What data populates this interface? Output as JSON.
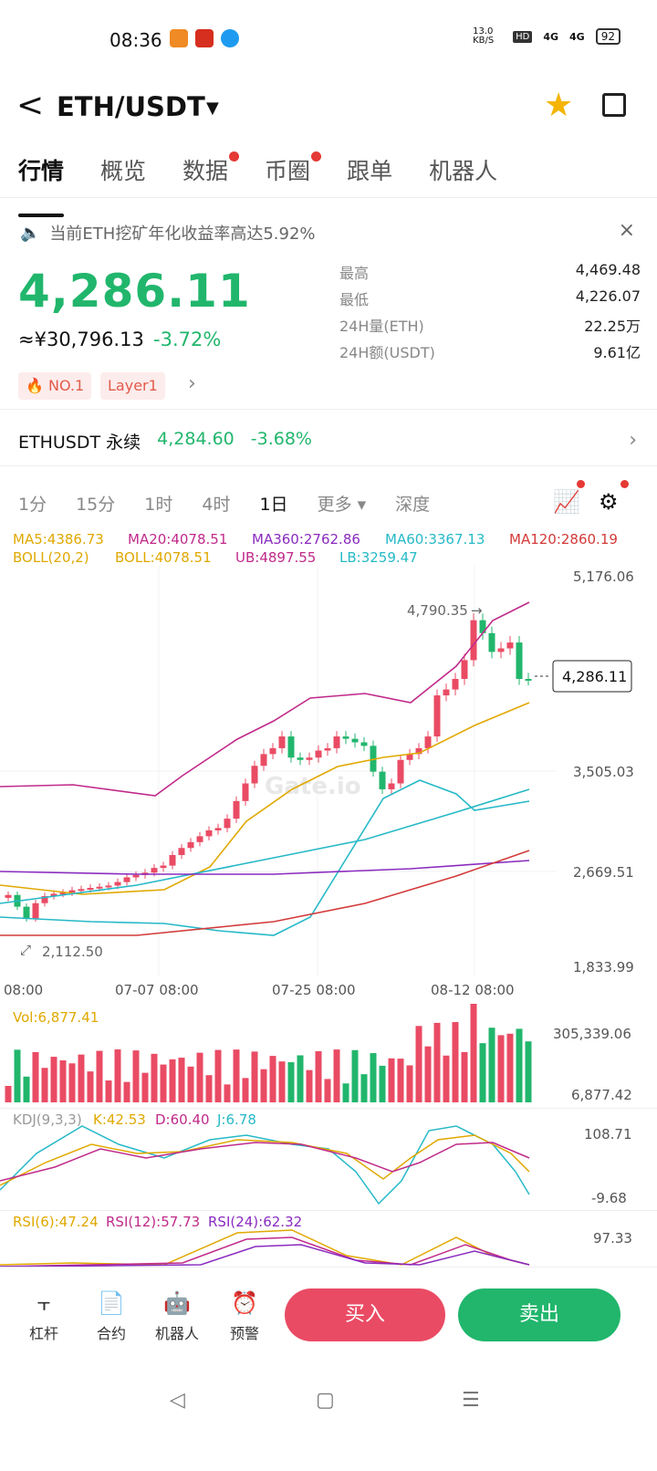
{
  "status_bar": {
    "time": "08:36",
    "net_speed": "13.0 KB/S",
    "signal1": "4G",
    "signal2": "4G",
    "battery": "92"
  },
  "header": {
    "pair": "ETH/USDT",
    "dropdown": "▼",
    "back": "<"
  },
  "tabs": [
    {
      "label": "行情",
      "active": true,
      "dot": false
    },
    {
      "label": "概览",
      "active": false,
      "dot": false
    },
    {
      "label": "数据",
      "active": false,
      "dot": true
    },
    {
      "label": "币圈",
      "active": false,
      "dot": true
    },
    {
      "label": "跟单",
      "active": false,
      "dot": false
    },
    {
      "label": "机器人",
      "active": false,
      "dot": false
    }
  ],
  "notice": {
    "text": "当前ETH挖矿年化收益率高达5.92%",
    "close": "×"
  },
  "price": {
    "last": "4,286.11",
    "cny": "≈¥30,796.13",
    "change": "-3.72%"
  },
  "tags": [
    "NO.1",
    "Layer1"
  ],
  "stats": [
    {
      "k": "最高",
      "v": "4,469.48"
    },
    {
      "k": "最低",
      "v": "4,226.07"
    },
    {
      "k": "24H量(ETH)",
      "v": "22.25万"
    },
    {
      "k": "24H额(USDT)",
      "v": "9.61亿"
    }
  ],
  "perp": {
    "name": "ETHUSDT 永续",
    "price": "4,284.60",
    "change": "-3.68%"
  },
  "timeframes": [
    {
      "label": "1分",
      "active": false
    },
    {
      "label": "15分",
      "active": false
    },
    {
      "label": "1时",
      "active": false
    },
    {
      "label": "4时",
      "active": false
    },
    {
      "label": "1日",
      "active": true
    },
    {
      "label": "更多 ▾",
      "active": false
    },
    {
      "label": "深度",
      "active": false
    }
  ],
  "indicators": {
    "ma5": "MA5:4386.73",
    "ma20": "MA20:4078.51",
    "ma360": "MA360:2762.86",
    "ma60": "MA60:3367.13",
    "ma120": "MA120:2860.19",
    "boll": "BOLL(20,2)",
    "boll_mid": "BOLL:4078.51",
    "ub": "UB:4897.55",
    "lb": "LB:3259.47",
    "vol": "Vol:6,877.41",
    "kdj": "KDJ(9,3,3)",
    "k": "K:42.53",
    "d": "D:60.40",
    "j": "J:6.78",
    "rsi6": "RSI(6):47.24",
    "rsi12": "RSI(12):57.73",
    "rsi24": "RSI(24):62.32"
  },
  "chart_data": {
    "type": "candlestick",
    "y_axis": [
      "5,176.06",
      "3,505.03",
      "2,669.51",
      "1,833.99"
    ],
    "ylim": [
      1833.99,
      5176.06
    ],
    "x_axis": [
      "08:00",
      "07-07 08:00",
      "07-25 08:00",
      "08-12 08:00"
    ],
    "high_label": "4,790.35",
    "low_label": "2,112.50",
    "last_label": "4,286.11",
    "watermark": "Gate.io",
    "closes": [
      2450,
      2350,
      2250,
      2380,
      2440,
      2460,
      2470,
      2490,
      2500,
      2510,
      2520,
      2530,
      2560,
      2600,
      2620,
      2640,
      2680,
      2700,
      2790,
      2850,
      2900,
      2950,
      3000,
      3020,
      3100,
      3250,
      3400,
      3550,
      3650,
      3700,
      3800,
      3620,
      3600,
      3620,
      3680,
      3700,
      3800,
      3780,
      3750,
      3720,
      3500,
      3350,
      3400,
      3600,
      3650,
      3700,
      3800,
      4150,
      4200,
      4290,
      4450,
      4790,
      4680,
      4520,
      4550,
      4600,
      4290,
      4286
    ],
    "volume_axis": [
      "305,339.06",
      "6,877.42"
    ],
    "kdj_axis": [
      "108.71",
      "-9.68"
    ],
    "rsi_axis": [
      "97.33"
    ]
  },
  "bottom": {
    "leverage": "杠杆",
    "contract": "合约",
    "robot": "机器人",
    "alert": "预警",
    "buy": "买入",
    "sell": "卖出"
  },
  "colors": {
    "up": "#21b66c",
    "down": "#ea4b64",
    "accent": "#f4b400"
  }
}
